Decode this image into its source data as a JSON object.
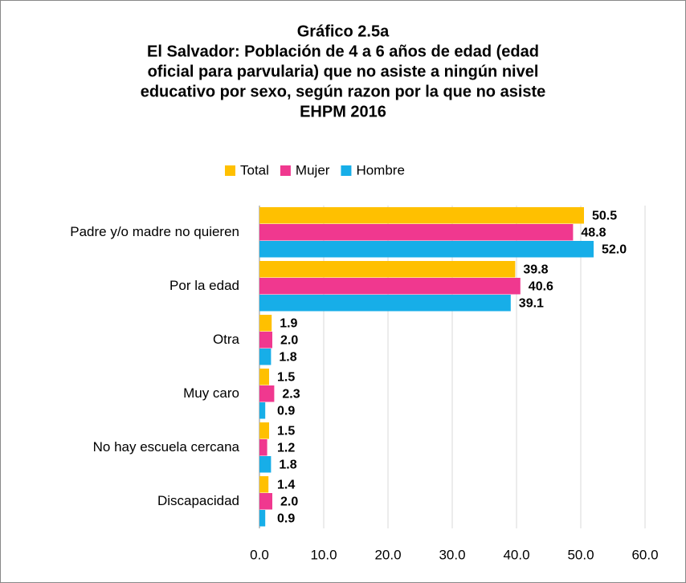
{
  "chart_data": {
    "type": "barh",
    "title": [
      "Gráfico 2.5a",
      "El Salvador: Población de 4 a 6 años de edad (edad",
      "oficial para parvularia) que no asiste a ningún nivel",
      "educativo por sexo, según razon por la que no asiste",
      "EHPM 2016"
    ],
    "categories": [
      "Padre y/o madre no quieren",
      "Por la edad",
      "Otra",
      "Muy caro",
      "No hay escuela cercana",
      "Discapacidad"
    ],
    "series": [
      {
        "name": "Total",
        "color": "#ffc000",
        "values": [
          50.5,
          39.8,
          1.9,
          1.5,
          1.5,
          1.4
        ],
        "value_labels": [
          "50.5",
          "39.8",
          "1.9",
          "1.5",
          "1.5",
          "1.4"
        ]
      },
      {
        "name": "Mujer",
        "color": "#f0388f",
        "values": [
          48.8,
          40.6,
          2.0,
          2.3,
          1.2,
          2.0
        ],
        "value_labels": [
          "48.8",
          "40.6",
          "2.0",
          "2.3",
          "1.2",
          "2.0"
        ]
      },
      {
        "name": "Hombre",
        "color": "#17aee8",
        "values": [
          52.0,
          39.1,
          1.8,
          0.9,
          1.8,
          0.9
        ],
        "value_labels": [
          "52.0",
          "39.1",
          "1.8",
          "0.9",
          "1.8",
          "0.9"
        ]
      }
    ],
    "xlim": [
      0,
      60
    ],
    "xticks": [
      {
        "value": 0,
        "label": "0.0"
      },
      {
        "value": 10,
        "label": "10.0"
      },
      {
        "value": 20,
        "label": "20.0"
      },
      {
        "value": 30,
        "label": "30.0"
      },
      {
        "value": 40,
        "label": "40.0"
      },
      {
        "value": 50,
        "label": "50.0"
      },
      {
        "value": 60,
        "label": "60.0"
      }
    ],
    "grid": true,
    "legend": "top"
  }
}
